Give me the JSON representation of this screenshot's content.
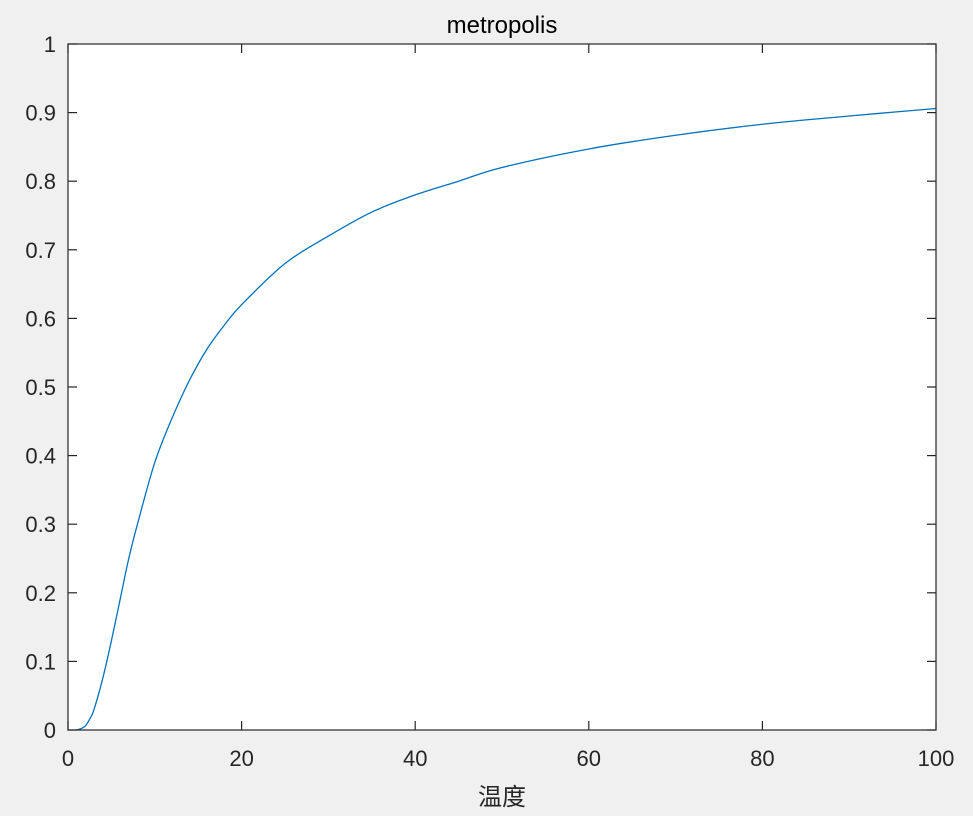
{
  "chart_data": {
    "type": "line",
    "title": "metropolis",
    "xlabel": "温度",
    "ylabel": "",
    "xlim": [
      0,
      100
    ],
    "ylim": [
      0,
      1
    ],
    "xticks": [
      0,
      20,
      40,
      60,
      80,
      100
    ],
    "yticks": [
      0,
      0.1,
      0.2,
      0.3,
      0.4,
      0.5,
      0.6,
      0.7,
      0.8,
      0.9,
      1
    ],
    "xtick_labels": [
      "0",
      "20",
      "40",
      "60",
      "80",
      "100"
    ],
    "ytick_labels": [
      "0",
      "0.1",
      "0.2",
      "0.3",
      "0.4",
      "0.5",
      "0.6",
      "0.7",
      "0.8",
      "0.9",
      "1"
    ],
    "grid": false,
    "line_color": "#0072bd",
    "series": [
      {
        "x": [
          1,
          1.5,
          2,
          2.5,
          3,
          4,
          5,
          6,
          7,
          8,
          10,
          12,
          14,
          16,
          18,
          20,
          25,
          30,
          35,
          40,
          45,
          50,
          60,
          70,
          80,
          90,
          100
        ],
        "values": [
          0,
          0.002,
          0.006,
          0.016,
          0.03,
          0.075,
          0.13,
          0.19,
          0.25,
          0.3,
          0.39,
          0.455,
          0.51,
          0.555,
          0.59,
          0.62,
          0.68,
          0.72,
          0.755,
          0.78,
          0.8,
          0.82,
          0.847,
          0.867,
          0.883,
          0.895,
          0.906
        ]
      }
    ]
  }
}
